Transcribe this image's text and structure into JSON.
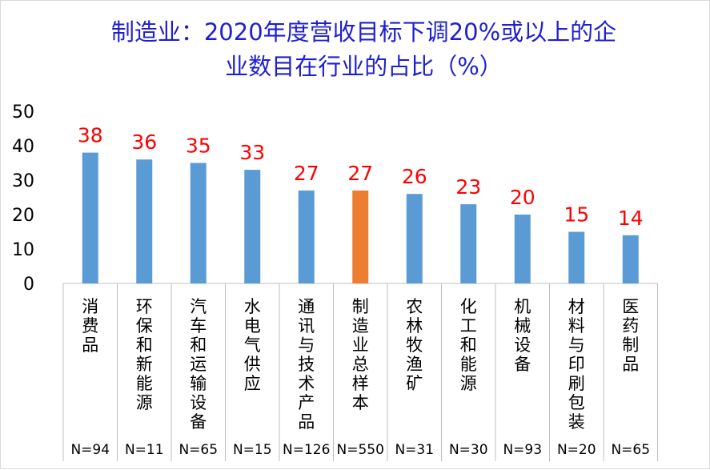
{
  "colors": {
    "title": "#1f1fcf",
    "bar": "#5b9bd5",
    "highlight_bar": "#ed7d31",
    "data_label": "#ff0000",
    "axis_line": "#bfbfbf"
  },
  "chart_data": {
    "type": "bar",
    "title_lines": [
      "制造业：2020年度营收目标下调20%或以上的企",
      "业数目在行业的占比（%）"
    ],
    "categories": [
      "消费品",
      "环保和新能源",
      "汽车和运输设备",
      "水电气供应",
      "通讯与技术产品",
      "制造业总样本",
      "农林牧渔矿",
      "化工和能源",
      "机械设备",
      "材料与印刷包装",
      "医药制品"
    ],
    "values": [
      38,
      36,
      35,
      33,
      27,
      27,
      26,
      23,
      20,
      15,
      14
    ],
    "data_labels": [
      "38",
      "36",
      "35",
      "33",
      "27",
      "27",
      "26",
      "23",
      "20",
      "15",
      "14"
    ],
    "sample_sizes": [
      "N=94",
      "N=11",
      "N=65",
      "N=15",
      "N=126",
      "N=550",
      "N=31",
      "N=30",
      "N=93",
      "N=20",
      "N=65"
    ],
    "highlight_category": "制造业总样本",
    "ylim": [
      0,
      50
    ],
    "yticks": [
      0,
      10,
      20,
      30,
      40,
      50
    ],
    "grid": false,
    "legend": "none"
  }
}
